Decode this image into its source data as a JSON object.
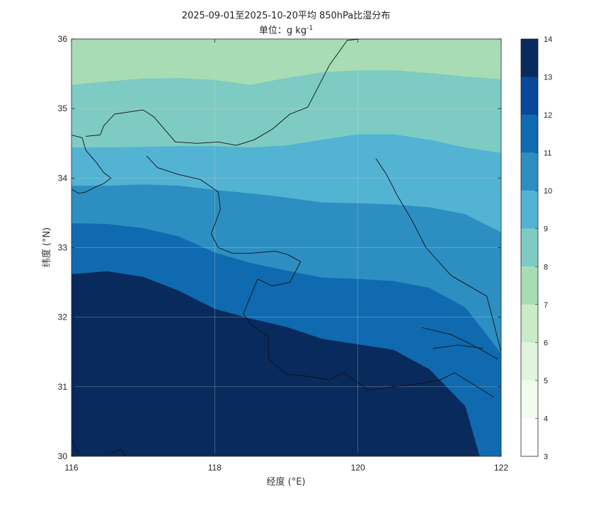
{
  "chart_data": {
    "type": "contourf",
    "title": "2025-09-01至2025-10-20平均 850hPa比湿分布",
    "subtitle_prefix": "单位：g kg",
    "subtitle_sup": "-1",
    "xlabel": "经度 (°E)",
    "ylabel": "纬度 (°N)",
    "xlim": [
      116,
      122
    ],
    "ylim": [
      30,
      36
    ],
    "xticks": [
      116,
      118,
      120,
      122
    ],
    "xtick_labels": [
      "116",
      "118",
      "120",
      "122"
    ],
    "yticks": [
      30,
      31,
      32,
      33,
      34,
      35,
      36
    ],
    "ytick_labels": [
      "30",
      "31",
      "32",
      "33",
      "34",
      "35",
      "36"
    ],
    "grid": true,
    "colorbar": {
      "levels": [
        3,
        4,
        5,
        6,
        7,
        8,
        9,
        10,
        11,
        12,
        13,
        14
      ],
      "labels": [
        "3",
        "4",
        "5",
        "6",
        "7",
        "8",
        "9",
        "10",
        "11",
        "12",
        "13",
        "14"
      ],
      "colors": [
        "#ffffff",
        "#f3fbf0",
        "#e1f4dd",
        "#c9ebc5",
        "#a8dcb4",
        "#7ecbc3",
        "#52b3d3",
        "#2d8ec2",
        "#0f6ab0",
        "#08479a",
        "#082a5c"
      ]
    },
    "contours": [
      {
        "level": 8,
        "points": [
          [
            116.0,
            35.34
          ],
          [
            116.5,
            35.39
          ],
          [
            117.0,
            35.43
          ],
          [
            117.5,
            35.44
          ],
          [
            118.0,
            35.41
          ],
          [
            118.5,
            35.34
          ],
          [
            119.0,
            35.44
          ],
          [
            119.5,
            35.52
          ],
          [
            120.0,
            35.55
          ],
          [
            120.5,
            35.55
          ],
          [
            121.0,
            35.51
          ],
          [
            121.5,
            35.46
          ],
          [
            122.0,
            35.42
          ]
        ]
      },
      {
        "level": 9,
        "points": [
          [
            116.0,
            34.44
          ],
          [
            116.5,
            34.44
          ],
          [
            117.0,
            34.45
          ],
          [
            117.5,
            34.46
          ],
          [
            118.0,
            34.46
          ],
          [
            118.5,
            34.44
          ],
          [
            119.0,
            34.47
          ],
          [
            119.5,
            34.55
          ],
          [
            120.0,
            34.63
          ],
          [
            120.5,
            34.63
          ],
          [
            121.0,
            34.55
          ],
          [
            121.5,
            34.44
          ],
          [
            122.0,
            34.36
          ]
        ]
      },
      {
        "level": 10,
        "points": [
          [
            116.0,
            33.89
          ],
          [
            116.5,
            33.89
          ],
          [
            117.0,
            33.91
          ],
          [
            117.5,
            33.89
          ],
          [
            118.0,
            33.83
          ],
          [
            118.5,
            33.78
          ],
          [
            119.0,
            33.72
          ],
          [
            119.5,
            33.65
          ],
          [
            120.0,
            33.64
          ],
          [
            120.5,
            33.62
          ],
          [
            121.0,
            33.58
          ],
          [
            121.5,
            33.48
          ],
          [
            122.0,
            33.22
          ]
        ]
      },
      {
        "level": 11,
        "points": [
          [
            116.0,
            33.35
          ],
          [
            116.5,
            33.34
          ],
          [
            117.0,
            33.28
          ],
          [
            117.5,
            33.16
          ],
          [
            118.0,
            32.93
          ],
          [
            118.5,
            32.78
          ],
          [
            119.0,
            32.67
          ],
          [
            119.5,
            32.57
          ],
          [
            120.0,
            32.55
          ],
          [
            120.5,
            32.52
          ],
          [
            121.0,
            32.42
          ],
          [
            121.5,
            32.14
          ],
          [
            122.0,
            31.48
          ]
        ]
      },
      {
        "level": 12,
        "points": [
          [
            116.0,
            32.62
          ],
          [
            116.5,
            32.66
          ],
          [
            117.0,
            32.58
          ],
          [
            117.5,
            32.38
          ],
          [
            118.0,
            32.12
          ],
          [
            118.5,
            31.98
          ],
          [
            119.0,
            31.86
          ],
          [
            119.5,
            31.69
          ],
          [
            120.0,
            31.61
          ],
          [
            120.5,
            31.53
          ],
          [
            121.0,
            31.25
          ],
          [
            121.5,
            30.72
          ],
          [
            121.7,
            30.0
          ]
        ]
      }
    ],
    "borders": [
      [
        [
          116.0,
          34.62
        ],
        [
          116.15,
          34.58
        ],
        [
          116.2,
          34.4
        ],
        [
          116.35,
          34.22
        ],
        [
          116.45,
          34.08
        ],
        [
          116.55,
          34.0
        ],
        [
          116.45,
          33.92
        ],
        [
          116.35,
          33.88
        ],
        [
          116.2,
          33.8
        ],
        [
          116.1,
          33.78
        ],
        [
          116.0,
          33.84
        ]
      ],
      [
        [
          116.2,
          34.6
        ],
        [
          116.4,
          34.62
        ],
        [
          116.45,
          34.75
        ],
        [
          116.6,
          34.92
        ],
        [
          116.8,
          34.95
        ],
        [
          117.0,
          34.98
        ],
        [
          117.15,
          34.88
        ],
        [
          117.3,
          34.7
        ],
        [
          117.45,
          34.52
        ],
        [
          117.75,
          34.5
        ],
        [
          118.05,
          34.52
        ],
        [
          118.3,
          34.47
        ],
        [
          118.55,
          34.55
        ],
        [
          118.8,
          34.7
        ],
        [
          119.05,
          34.92
        ],
        [
          119.3,
          35.02
        ],
        [
          119.6,
          35.62
        ],
        [
          119.85,
          35.98
        ],
        [
          120.2,
          36.02
        ]
      ],
      [
        [
          117.05,
          34.32
        ],
        [
          117.2,
          34.15
        ],
        [
          117.5,
          34.05
        ],
        [
          117.8,
          33.98
        ],
        [
          118.05,
          33.8
        ],
        [
          118.08,
          33.55
        ],
        [
          117.95,
          33.2
        ],
        [
          118.05,
          33.0
        ],
        [
          118.25,
          32.92
        ],
        [
          118.5,
          32.92
        ],
        [
          118.85,
          32.95
        ],
        [
          119.02,
          32.9
        ],
        [
          119.2,
          32.8
        ],
        [
          119.05,
          32.5
        ],
        [
          118.8,
          32.45
        ],
        [
          118.6,
          32.55
        ],
        [
          118.5,
          32.3
        ],
        [
          118.4,
          32.05
        ],
        [
          118.5,
          31.9
        ],
        [
          118.75,
          31.72
        ],
        [
          118.75,
          31.4
        ],
        [
          119.0,
          31.18
        ],
        [
          119.3,
          31.15
        ],
        [
          119.6,
          31.1
        ],
        [
          119.8,
          31.2
        ],
        [
          120.15,
          30.95
        ],
        [
          120.5,
          31.0
        ],
        [
          120.9,
          31.05
        ],
        [
          121.15,
          31.1
        ],
        [
          121.35,
          31.2
        ],
        [
          121.9,
          30.85
        ]
      ],
      [
        [
          120.25,
          34.28
        ],
        [
          120.4,
          34.05
        ],
        [
          120.55,
          33.75
        ],
        [
          120.75,
          33.4
        ],
        [
          120.95,
          33.0
        ],
        [
          121.3,
          32.6
        ],
        [
          121.8,
          32.3
        ],
        [
          122.0,
          31.5
        ]
      ],
      [
        [
          120.9,
          31.85
        ],
        [
          121.3,
          31.75
        ],
        [
          121.6,
          31.6
        ],
        [
          121.95,
          31.4
        ]
      ],
      [
        [
          121.05,
          31.55
        ],
        [
          121.4,
          31.6
        ],
        [
          121.75,
          31.55
        ]
      ],
      [
        [
          116.0,
          30.25
        ],
        [
          116.1,
          30.05
        ]
      ],
      [
        [
          116.55,
          30.05
        ],
        [
          116.7,
          30.1
        ],
        [
          116.75,
          30.0
        ]
      ]
    ]
  }
}
